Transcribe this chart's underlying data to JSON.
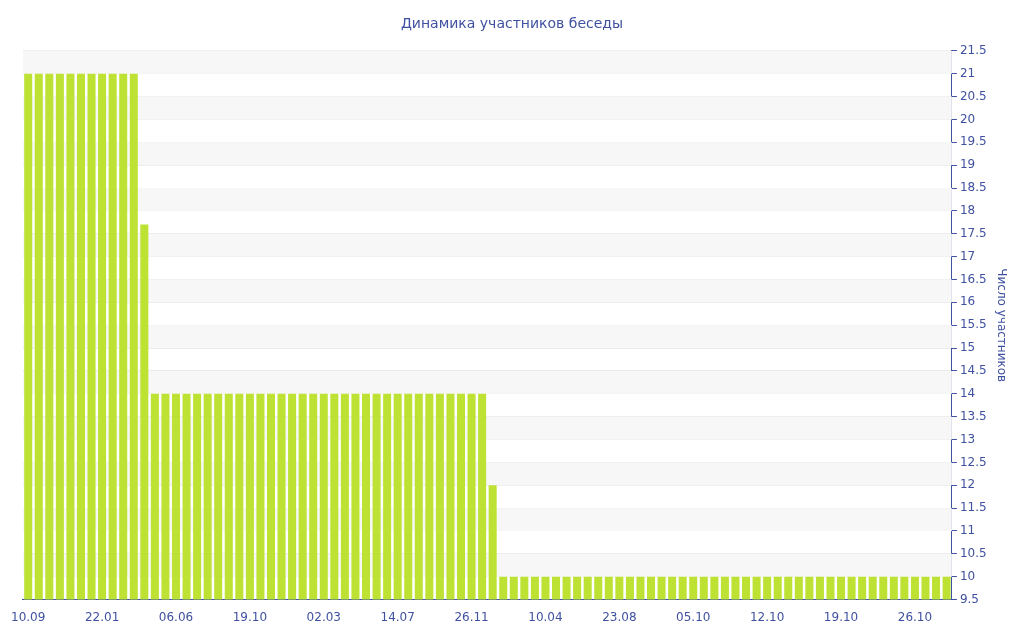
{
  "chart_data": {
    "type": "bar",
    "title": "Динамика участников беседы",
    "ylabel": "Число участников",
    "categories": [
      "10.09",
      null,
      null,
      null,
      null,
      null,
      null,
      "22.01",
      null,
      null,
      null,
      null,
      null,
      null,
      "06.06",
      null,
      null,
      null,
      null,
      null,
      null,
      "19.10",
      null,
      null,
      null,
      null,
      null,
      null,
      "02.03",
      null,
      null,
      null,
      null,
      null,
      null,
      "14.07",
      null,
      null,
      null,
      null,
      null,
      null,
      "26.11",
      null,
      null,
      null,
      null,
      null,
      null,
      "10.04",
      null,
      null,
      null,
      null,
      null,
      null,
      "23.08",
      null,
      null,
      null,
      null,
      null,
      null,
      "05.10",
      null,
      null,
      null,
      null,
      null,
      null,
      "12.10",
      null,
      null,
      null,
      null,
      null,
      null,
      "19.10",
      null,
      null,
      null,
      null,
      null,
      null,
      "26.10",
      null,
      null,
      null
    ],
    "values": [
      21,
      21,
      21,
      21,
      21,
      21,
      21,
      21,
      21,
      21,
      21,
      17.7,
      14,
      14,
      14,
      14,
      14,
      14,
      14,
      14,
      14,
      14,
      14,
      14,
      14,
      14,
      14,
      14,
      14,
      14,
      14,
      14,
      14,
      14,
      14,
      14,
      14,
      14,
      14,
      14,
      14,
      14,
      14,
      14,
      12,
      10,
      10,
      10,
      10,
      10,
      10,
      10,
      10,
      10,
      10,
      10,
      10,
      10,
      10,
      10,
      10,
      10,
      10,
      10,
      10,
      10,
      10,
      10,
      10,
      10,
      10,
      10,
      10,
      10,
      10,
      10,
      10,
      10,
      10,
      10,
      10,
      10,
      10,
      10,
      10,
      10,
      10,
      10
    ],
    "color": "#bde233",
    "ylim": [
      9.5,
      21.5
    ],
    "yticks": [
      9.5,
      10,
      10.5,
      11,
      11.5,
      12,
      12.5,
      13,
      13.5,
      14,
      14.5,
      15,
      15.5,
      16,
      16.5,
      17,
      17.5,
      18,
      18.5,
      19,
      19.5,
      20,
      20.5,
      21,
      21.5
    ],
    "grid": "y",
    "legend": false
  }
}
